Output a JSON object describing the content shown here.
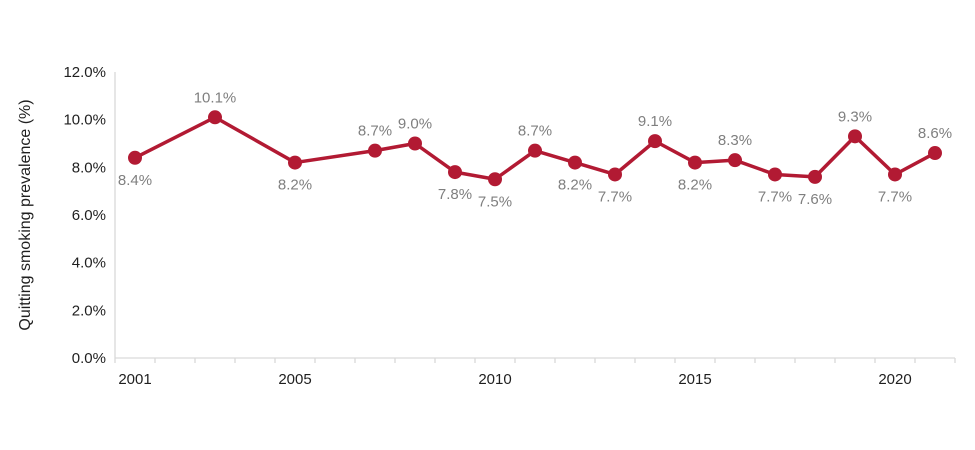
{
  "chart_data": {
    "type": "line",
    "title": "",
    "xlabel": "",
    "ylabel": "Quitting smoking prevalence (%)",
    "legend": "none",
    "grid": false,
    "marker_style": "circle",
    "x": [
      2001,
      2003,
      2005,
      2007,
      2008,
      2009,
      2010,
      2011,
      2012,
      2013,
      2014,
      2015,
      2016,
      2017,
      2018,
      2019,
      2020,
      2021
    ],
    "series": [
      {
        "name": "Quitting smoking prevalence",
        "values": [
          8.4,
          10.1,
          8.2,
          8.7,
          9.0,
          7.8,
          7.5,
          8.7,
          8.2,
          7.7,
          9.1,
          8.2,
          8.3,
          7.7,
          7.6,
          9.3,
          7.7,
          8.6
        ],
        "labels": [
          "8.4%",
          "10.1%",
          "8.2%",
          "8.7%",
          "9.0%",
          "7.8%",
          "7.5%",
          "8.7%",
          "8.2%",
          "7.7%",
          "9.1%",
          "8.2%",
          "8.3%",
          "7.7%",
          "7.6%",
          "9.3%",
          "7.7%",
          "8.6%"
        ],
        "label_positions": [
          "below",
          "above",
          "below",
          "above",
          "above",
          "below",
          "below",
          "above",
          "below",
          "below",
          "above",
          "below",
          "above",
          "below",
          "below",
          "above",
          "below",
          "above"
        ]
      }
    ],
    "x_axis": {
      "range_years": [
        2001,
        2021
      ],
      "labeled_years": [
        2001,
        2005,
        2010,
        2015,
        2020
      ],
      "tick_labels": [
        "2001",
        "2005",
        "2010",
        "2015",
        "2020"
      ]
    },
    "y_axis": {
      "min": 0,
      "max": 12,
      "ticks": [
        0,
        2,
        4,
        6,
        8,
        10,
        12
      ],
      "tick_labels": [
        "0.0%",
        "2.0%",
        "4.0%",
        "6.0%",
        "8.0%",
        "10.0%",
        "12.0%"
      ]
    },
    "colors": {
      "line": "#B21A33",
      "marker": "#B21A33",
      "data_label": "#7F7F7F",
      "axis_line": "#D9D9D9",
      "axis_text": "#1F1F1F",
      "background": "#FFFFFF"
    }
  }
}
